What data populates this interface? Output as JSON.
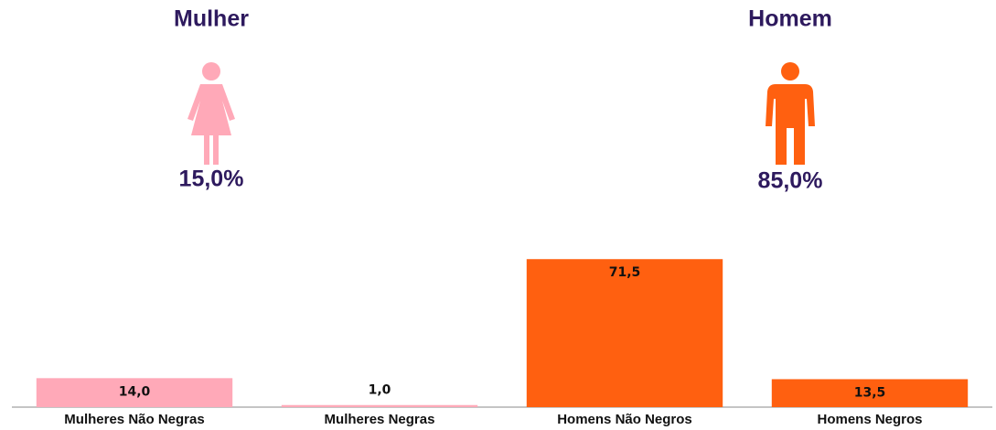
{
  "header": {
    "groups": [
      {
        "title": "Mulher",
        "share": "15,0%",
        "color": "#ffa9b8"
      },
      {
        "title": "Homem",
        "share": "85,0%",
        "color": "#ff6010"
      }
    ]
  },
  "chart_data": {
    "type": "bar",
    "categories": [
      "Mulheres Não Negras",
      "Mulheres Negras",
      "Homens Não Negros",
      "Homens Negros"
    ],
    "values": [
      14.0,
      1.0,
      71.5,
      13.5
    ],
    "value_labels": [
      "14,0",
      "1,0",
      "71,5",
      "13,5"
    ],
    "colors": [
      "#ffa9b8",
      "#ffa9b8",
      "#ff6010",
      "#ff6010"
    ],
    "ylim": [
      0,
      80
    ]
  }
}
